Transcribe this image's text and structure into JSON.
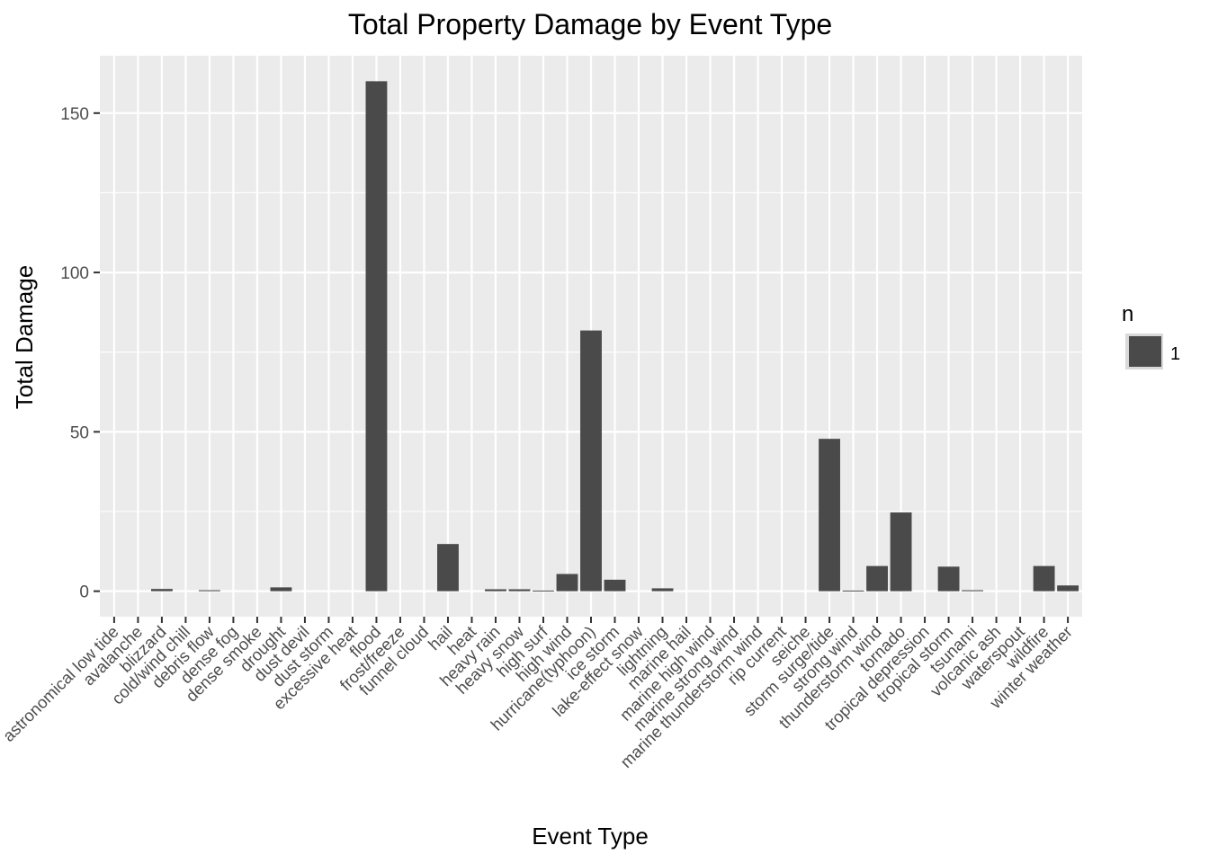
{
  "chart_data": {
    "type": "bar",
    "title": "Total Property Damage by Event Type",
    "xlabel": "Event Type",
    "ylabel": "Total Damage",
    "ylim": [
      -8,
      168
    ],
    "yticks": [
      0,
      50,
      100,
      150
    ],
    "grid": true,
    "legend": {
      "title": "n",
      "entries": [
        "1"
      ],
      "placement": "right"
    },
    "colors": {
      "bar": "#4a4a4a",
      "panel": "#ebebeb",
      "grid": "#ffffff",
      "legend_key_border": "#d9d9d9"
    },
    "categories": [
      "astronomical low tide",
      "avalanche",
      "blizzard",
      "cold/wind chill",
      "debris flow",
      "dense fog",
      "dense smoke",
      "drought",
      "dust devil",
      "dust storm",
      "excessive heat",
      "flood",
      "frost/freeze",
      "funnel cloud",
      "hail",
      "heat",
      "heavy rain",
      "heavy snow",
      "high surf",
      "high wind",
      "hurricane(typhoon)",
      "ice storm",
      "lake-effect snow",
      "lightning",
      "marine hail",
      "marine high wind",
      "marine strong wind",
      "marine thunderstorm wind",
      "rip current",
      "seiche",
      "storm surge/tide",
      "strong wind",
      "thunderstorm wind",
      "tornado",
      "tropical depression",
      "tropical storm",
      "tsunami",
      "volcanic ash",
      "waterspout",
      "wildfire",
      "winter weather"
    ],
    "series": [
      {
        "name": "1",
        "values": [
          0,
          0,
          0.7,
          0,
          0.3,
          0,
          0,
          1.2,
          0,
          0,
          0,
          160,
          0,
          0,
          14.8,
          0,
          0.6,
          0.6,
          0.2,
          5.4,
          81.8,
          3.6,
          0,
          0.9,
          0,
          0,
          0,
          0,
          0,
          0,
          47.8,
          0.2,
          7.9,
          24.7,
          0,
          7.7,
          0.3,
          0,
          0,
          7.9,
          1.8
        ]
      }
    ]
  }
}
